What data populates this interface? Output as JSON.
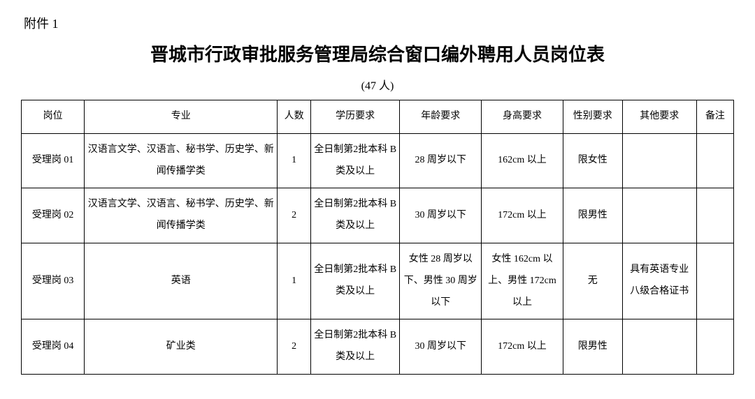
{
  "attachment_label": "附件 1",
  "title": "晋城市行政审批服务管理局综合窗口编外聘用人员岗位表",
  "subtitle": "(47 人)",
  "table": {
    "columns": [
      "岗位",
      "专业",
      "人数",
      "学历要求",
      "年龄要求",
      "身高要求",
      "性别要求",
      "其他要求",
      "备注"
    ],
    "rows": [
      {
        "position": "受理岗 01",
        "major": "汉语言文学、汉语言、秘书学、历史学、新闻传播学类",
        "count": "1",
        "education": "全日制第2批本科 B 类及以上",
        "age": "28 周岁以下",
        "height": "162cm 以上",
        "gender": "限女性",
        "other": "",
        "remark": ""
      },
      {
        "position": "受理岗 02",
        "major": "汉语言文学、汉语言、秘书学、历史学、新闻传播学类",
        "count": "2",
        "education": "全日制第2批本科 B 类及以上",
        "age": "30 周岁以下",
        "height": "172cm 以上",
        "gender": "限男性",
        "other": "",
        "remark": ""
      },
      {
        "position": "受理岗 03",
        "major": "英语",
        "count": "1",
        "education": "全日制第2批本科 B 类及以上",
        "age": "女性 28 周岁以下、男性 30 周岁以下",
        "height": "女性 162cm 以上、男性 172cm 以上",
        "gender": "无",
        "other": "具有英语专业八级合格证书",
        "remark": ""
      },
      {
        "position": "受理岗 04",
        "major": "矿业类",
        "count": "2",
        "education": "全日制第2批本科 B 类及以上",
        "age": "30 周岁以下",
        "height": "172cm 以上",
        "gender": "限男性",
        "other": "",
        "remark": ""
      }
    ]
  },
  "styles": {
    "background_color": "#ffffff",
    "text_color": "#000000",
    "border_color": "#000000",
    "title_fontsize": 26,
    "subtitle_fontsize": 16,
    "cell_fontsize": 14,
    "font_family": "SimSun"
  }
}
